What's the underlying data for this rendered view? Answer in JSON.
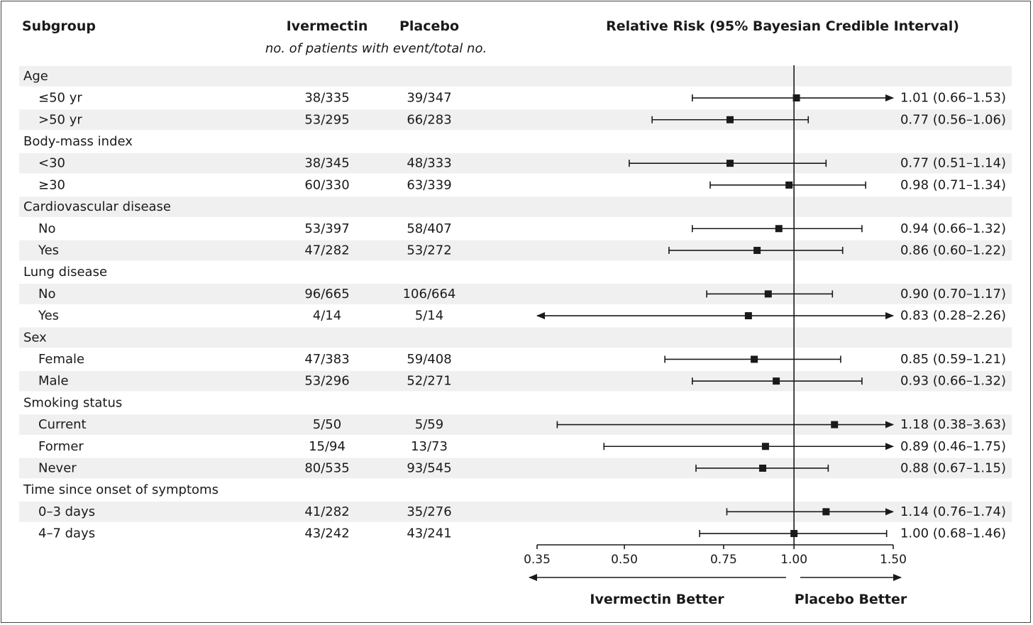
{
  "header": {
    "subgroup": "Subgroup",
    "ivermectin": "Ivermectin",
    "placebo": "Placebo",
    "subtitle": "no. of patients with event/total no.",
    "relative_risk": "Relative Risk (95% Bayesian Credible Interval)"
  },
  "chart_data": {
    "type": "forest",
    "x_scale": "log",
    "xlim": [
      0.35,
      1.5
    ],
    "reference_line": 1.0,
    "xticks": [
      0.35,
      0.5,
      0.75,
      1.0,
      1.5
    ],
    "xtick_labels": [
      "0.35",
      "0.50",
      "0.75",
      "1.00",
      "1.50"
    ],
    "direction_left": "Ivermectin Better",
    "direction_right": "Placebo Better",
    "rows": [
      {
        "type": "group",
        "label": "Age"
      },
      {
        "type": "item",
        "label": "≤50 yr",
        "ivermectin": "38/335",
        "placebo": "39/347",
        "rr": 1.01,
        "lo": 0.66,
        "hi": 1.53,
        "text": "1.01 (0.66–1.53)"
      },
      {
        "type": "item",
        "label": ">50 yr",
        "ivermectin": "53/295",
        "placebo": "66/283",
        "rr": 0.77,
        "lo": 0.56,
        "hi": 1.06,
        "text": "0.77 (0.56–1.06)"
      },
      {
        "type": "group",
        "label": "Body-mass index"
      },
      {
        "type": "item",
        "label": "<30",
        "ivermectin": "38/345",
        "placebo": "48/333",
        "rr": 0.77,
        "lo": 0.51,
        "hi": 1.14,
        "text": "0.77 (0.51–1.14)"
      },
      {
        "type": "item",
        "label": "≥30",
        "ivermectin": "60/330",
        "placebo": "63/339",
        "rr": 0.98,
        "lo": 0.71,
        "hi": 1.34,
        "text": "0.98 (0.71–1.34)"
      },
      {
        "type": "group",
        "label": "Cardiovascular disease"
      },
      {
        "type": "item",
        "label": "No",
        "ivermectin": "53/397",
        "placebo": "58/407",
        "rr": 0.94,
        "lo": 0.66,
        "hi": 1.32,
        "text": "0.94 (0.66–1.32)"
      },
      {
        "type": "item",
        "label": "Yes",
        "ivermectin": "47/282",
        "placebo": "53/272",
        "rr": 0.86,
        "lo": 0.6,
        "hi": 1.22,
        "text": "0.86 (0.60–1.22)"
      },
      {
        "type": "group",
        "label": "Lung disease"
      },
      {
        "type": "item",
        "label": "No",
        "ivermectin": "96/665",
        "placebo": "106/664",
        "rr": 0.9,
        "lo": 0.7,
        "hi": 1.17,
        "text": "0.90 (0.70–1.17)"
      },
      {
        "type": "item",
        "label": "Yes",
        "ivermectin": "4/14",
        "placebo": "5/14",
        "rr": 0.83,
        "lo": 0.28,
        "hi": 2.26,
        "text": "0.83 (0.28–2.26)"
      },
      {
        "type": "group",
        "label": "Sex"
      },
      {
        "type": "item",
        "label": "Female",
        "ivermectin": "47/383",
        "placebo": "59/408",
        "rr": 0.85,
        "lo": 0.59,
        "hi": 1.21,
        "text": "0.85 (0.59–1.21)"
      },
      {
        "type": "item",
        "label": "Male",
        "ivermectin": "53/296",
        "placebo": "52/271",
        "rr": 0.93,
        "lo": 0.66,
        "hi": 1.32,
        "text": "0.93 (0.66–1.32)"
      },
      {
        "type": "group",
        "label": "Smoking status"
      },
      {
        "type": "item",
        "label": "Current",
        "ivermectin": "5/50",
        "placebo": "5/59",
        "rr": 1.18,
        "lo": 0.38,
        "hi": 3.63,
        "text": "1.18 (0.38–3.63)"
      },
      {
        "type": "item",
        "label": "Former",
        "ivermectin": "15/94",
        "placebo": "13/73",
        "rr": 0.89,
        "lo": 0.46,
        "hi": 1.75,
        "text": "0.89 (0.46–1.75)"
      },
      {
        "type": "item",
        "label": "Never",
        "ivermectin": "80/535",
        "placebo": "93/545",
        "rr": 0.88,
        "lo": 0.67,
        "hi": 1.15,
        "text": "0.88 (0.67–1.15)"
      },
      {
        "type": "group",
        "label": "Time since onset of symptoms"
      },
      {
        "type": "item",
        "label": "0–3 days",
        "ivermectin": "41/282",
        "placebo": "35/276",
        "rr": 1.14,
        "lo": 0.76,
        "hi": 1.74,
        "text": "1.14 (0.76–1.74)"
      },
      {
        "type": "item",
        "label": "4–7 days",
        "ivermectin": "43/242",
        "placebo": "43/241",
        "rr": 1.0,
        "lo": 0.68,
        "hi": 1.46,
        "text": "1.00 (0.68–1.46)"
      }
    ]
  }
}
